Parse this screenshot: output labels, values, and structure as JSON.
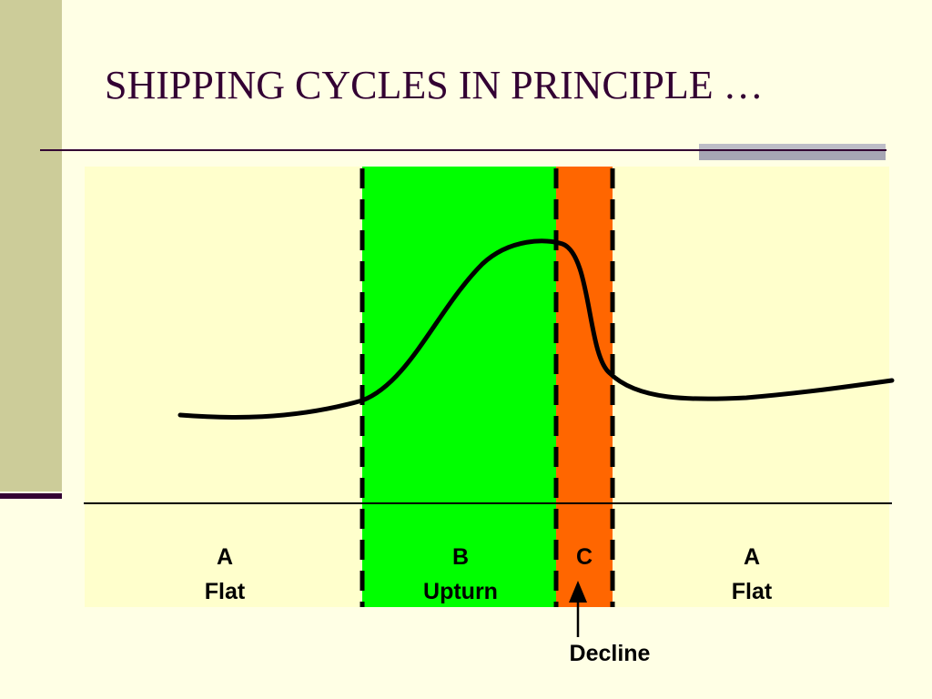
{
  "slide": {
    "title": "SHIPPING CYCLES IN PRINCIPLE …"
  },
  "phases": [
    {
      "letter": "A",
      "name": "Flat",
      "color": "#FFFFCC"
    },
    {
      "letter": "B",
      "name": "Upturn",
      "color": "#00FF00"
    },
    {
      "letter": "C",
      "name": "",
      "color": "#FF6600"
    },
    {
      "letter": "A",
      "name": "Flat",
      "color": "#FFFFCC"
    }
  ],
  "annotation": {
    "decline_label": "Decline"
  },
  "colors": {
    "background": "#FFFFE5",
    "title": "#330033",
    "curve": "#000000",
    "dashed_divider": "#000000"
  }
}
